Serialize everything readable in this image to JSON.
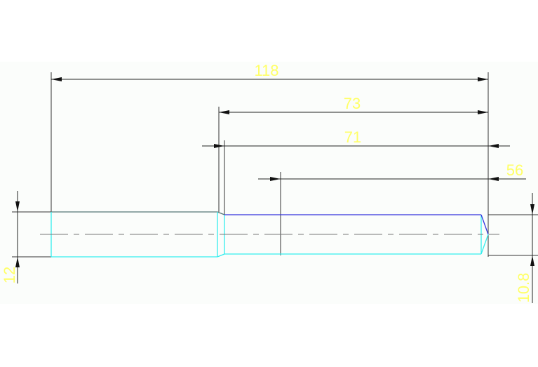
{
  "dimensions": {
    "overall_length": "118",
    "length_73": "73",
    "length_71": "71",
    "length_56": "56",
    "diameter_left": "12",
    "diameter_right": "10.8"
  },
  "colors": {
    "background_band": "#fbfdfb",
    "dimension_line": "#222222",
    "dimension_text": "#ffff66",
    "edge_cyan": "#33eeee",
    "edge_blue": "#3333dd",
    "centerline": "#777777"
  }
}
